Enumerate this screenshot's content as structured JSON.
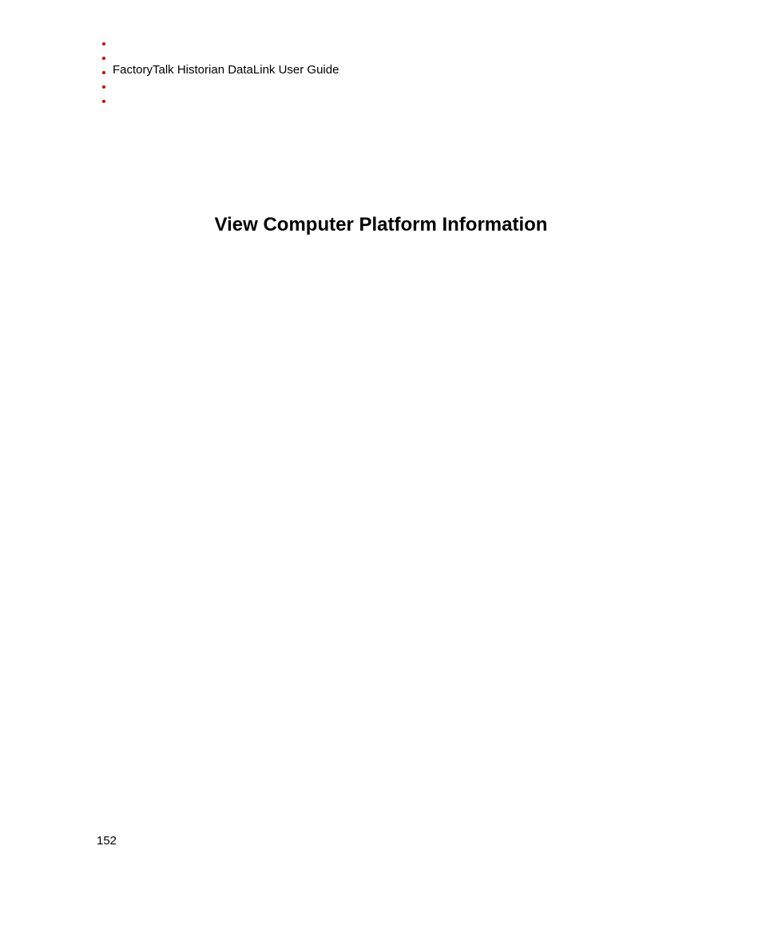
{
  "header": {
    "text": "FactoryTalk Historian DataLink User Guide"
  },
  "section": {
    "title": "View Computer Platform Information"
  },
  "footer": {
    "pageNumber": "152"
  },
  "styling": {
    "bullet_color": "#cc0000",
    "text_color": "#000000",
    "background_color": "#ffffff",
    "header_fontsize": 15,
    "title_fontsize": 24,
    "title_fontweight": "bold",
    "pagenum_fontsize": 15,
    "bullet_count": 5
  }
}
